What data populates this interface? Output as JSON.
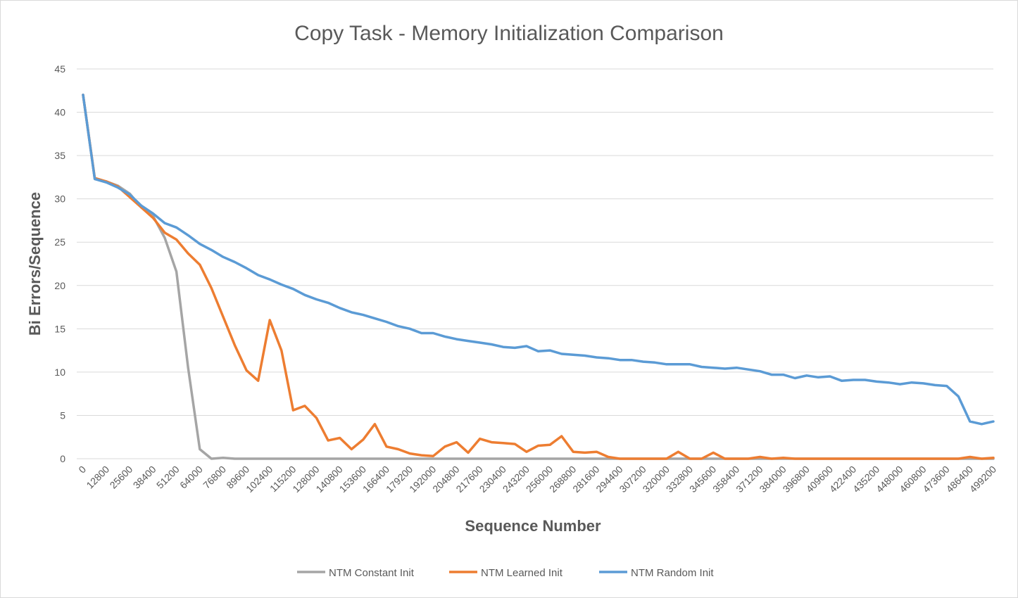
{
  "chart_data": {
    "type": "line",
    "title": "Copy Task - Memory Initialization Comparison",
    "xlabel": "Sequence Number",
    "ylabel": "Bi Errors/Sequence",
    "ylim": [
      0,
      45
    ],
    "yticks": [
      0,
      5,
      10,
      15,
      20,
      25,
      30,
      35,
      40,
      45
    ],
    "grid": true,
    "legend_position": "bottom",
    "x": [
      0,
      6400,
      12800,
      19200,
      25600,
      32000,
      38400,
      44800,
      51200,
      57600,
      64000,
      70400,
      76800,
      83200,
      89600,
      96000,
      102400,
      108800,
      115200,
      121600,
      128000,
      134400,
      140800,
      147200,
      153600,
      160000,
      166400,
      172800,
      179200,
      185600,
      192000,
      198400,
      204800,
      211200,
      217600,
      224000,
      230400,
      236800,
      243200,
      249600,
      256000,
      262400,
      268800,
      275200,
      281600,
      288000,
      294400,
      300800,
      307200,
      313600,
      320000,
      326400,
      332800,
      339200,
      345600,
      352000,
      358400,
      364800,
      371200,
      377600,
      384000,
      390400,
      396800,
      403200,
      409600,
      416000,
      422400,
      428800,
      435200,
      441600,
      448000,
      454400,
      460800,
      467200,
      473600,
      480000,
      486400,
      492800,
      499200
    ],
    "x_tick_labels": [
      "0",
      "12800",
      "25600",
      "38400",
      "51200",
      "64000",
      "76800",
      "89600",
      "102400",
      "115200",
      "128000",
      "140800",
      "153600",
      "166400",
      "179200",
      "192000",
      "204800",
      "217600",
      "230400",
      "243200",
      "256000",
      "268800",
      "281600",
      "294400",
      "307200",
      "320000",
      "332800",
      "345600",
      "358400",
      "371200",
      "384000",
      "396800",
      "409600",
      "422400",
      "435200",
      "448000",
      "460800",
      "473600",
      "486400",
      "499200"
    ],
    "series": [
      {
        "name": "NTM Constant Init",
        "color": "#a5a5a5",
        "values": [
          42,
          32.3,
          32,
          31.5,
          30.6,
          29,
          28,
          25.5,
          21.6,
          10.5,
          1.1,
          0,
          0.1,
          0,
          0,
          0,
          0,
          0,
          0,
          0,
          0,
          0,
          0,
          0,
          0,
          0,
          0,
          0,
          0,
          0,
          0,
          0,
          0,
          0,
          0,
          0,
          0,
          0,
          0,
          0,
          0,
          0,
          0,
          0,
          0,
          0,
          0,
          0,
          0,
          0,
          0,
          0,
          0,
          0,
          0,
          0,
          0,
          0,
          0,
          0,
          0,
          0,
          0,
          0,
          0,
          0,
          0,
          0,
          0,
          0,
          0,
          0,
          0,
          0,
          0,
          0,
          0,
          0,
          0
        ]
      },
      {
        "name": "NTM Learned Init",
        "color": "#ed7d31",
        "values": [
          42,
          32.4,
          32,
          31.4,
          30.2,
          29,
          27.8,
          26.1,
          25.3,
          23.7,
          22.4,
          19.7,
          16.4,
          13.1,
          10.2,
          9,
          16,
          12.5,
          5.6,
          6.1,
          4.7,
          2.1,
          2.4,
          1.1,
          2.2,
          4,
          1.4,
          1.1,
          0.6,
          0.4,
          0.3,
          1.4,
          1.9,
          0.7,
          2.3,
          1.9,
          1.8,
          1.7,
          0.8,
          1.5,
          1.6,
          2.6,
          0.8,
          0.7,
          0.8,
          0.2,
          0,
          0,
          0,
          0,
          0,
          0.8,
          0,
          0,
          0.7,
          0,
          0,
          0,
          0.2,
          0,
          0.1,
          0,
          0,
          0,
          0,
          0,
          0,
          0,
          0,
          0,
          0,
          0,
          0,
          0,
          0,
          0,
          0.2,
          0,
          0.1
        ]
      },
      {
        "name": "NTM Random Init",
        "color": "#5b9bd5",
        "values": [
          42,
          32.3,
          31.9,
          31.3,
          30.5,
          29.2,
          28.3,
          27.2,
          26.7,
          25.8,
          24.8,
          24.1,
          23.3,
          22.7,
          22,
          21.2,
          20.7,
          20.1,
          19.6,
          18.9,
          18.4,
          18,
          17.4,
          16.9,
          16.6,
          16.2,
          15.8,
          15.3,
          15,
          14.5,
          14.5,
          14.1,
          13.8,
          13.6,
          13.4,
          13.2,
          12.9,
          12.8,
          13,
          12.4,
          12.5,
          12.1,
          12,
          11.9,
          11.7,
          11.6,
          11.4,
          11.4,
          11.2,
          11.1,
          10.9,
          10.9,
          10.9,
          10.6,
          10.5,
          10.4,
          10.5,
          10.3,
          10.1,
          9.7,
          9.7,
          9.3,
          9.6,
          9.4,
          9.5,
          9,
          9.1,
          9.1,
          8.9,
          8.8,
          8.6,
          8.8,
          8.7,
          8.5,
          8.4,
          7.2,
          4.3,
          4,
          4.3
        ]
      }
    ]
  }
}
